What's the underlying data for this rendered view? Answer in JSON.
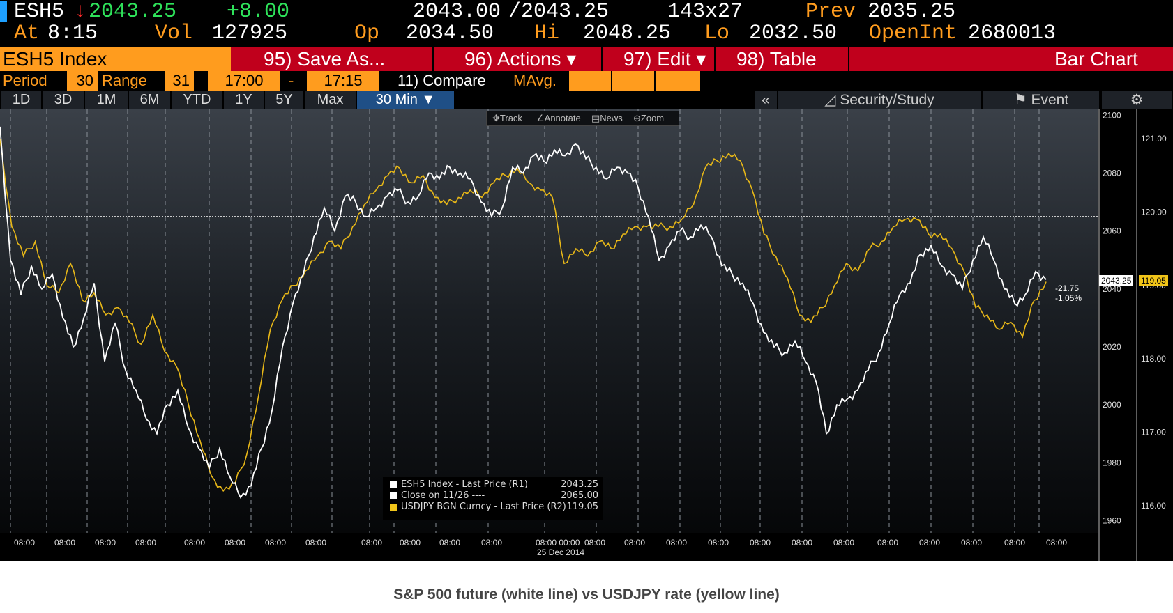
{
  "quote": {
    "ticker": "ESH5",
    "arrow": "↓",
    "last": "2043.25",
    "change": "+8.00",
    "bid_ask": "2043.00",
    "ask": "/2043.25",
    "size": "143x27",
    "prev_label": "Prev",
    "prev": "2035.25",
    "at_label": "At",
    "time": "8:15",
    "vol_label": "Vol",
    "vol": "127925",
    "op_label": "Op",
    "op": "2034.50",
    "hi_label": "Hi",
    "hi": "2048.25",
    "lo_label": "Lo",
    "lo": "2032.50",
    "oi_label": "OpenInt",
    "oi": "2680013"
  },
  "menubar": {
    "index": "ESH5 Index",
    "save": "95) Save As...",
    "actions": "96) Actions ▾",
    "edit": "97) Edit ▾",
    "table": "98) Table",
    "chart_type": "Bar Chart"
  },
  "periodbar": {
    "period_label": "Period",
    "period": "30",
    "range_label": "Range",
    "range": "31",
    "from": "17:00",
    "dash": "-",
    "to": "17:15",
    "compare": "11) Compare",
    "mavg": "MAvg."
  },
  "ranges": [
    "1D",
    "3D",
    "1M",
    "6M",
    "YTD",
    "1Y",
    "5Y",
    "Max",
    "30 Min ▼"
  ],
  "selected_range": "30 Min ▼",
  "right_toolbar": {
    "collapse": "«",
    "security": "Security/Study",
    "event": "Event",
    "settings": "⚙"
  },
  "chart_tools": {
    "track": "Track",
    "annotate": "Annotate",
    "news": "News",
    "zoom": "Zoom"
  },
  "legend": [
    {
      "name": "ESH5 Index - Last Price (R1)",
      "value": "2043.25",
      "color": "#ffffff"
    },
    {
      "name": "Close on 11/26 ----",
      "value": "2065.00",
      "color": "#ffffff"
    },
    {
      "name": "USDJPY BGN Curncy - Last Price (R2)",
      "value": "119.05",
      "color": "#f0c419"
    }
  ],
  "price_tag": {
    "value": "2043.25",
    "change": "-21.75",
    "pct": "-1.05%"
  },
  "jpy_tag": {
    "value": "119.05"
  },
  "caption": "S&P 500 future (white line) vs USDJPY rate (yellow line)",
  "chart_data": {
    "type": "line",
    "y_left_ticks": [
      "2100",
      "2080",
      "2060",
      "2040",
      "2020",
      "2000",
      "1980",
      "1960"
    ],
    "y_left_range": [
      1950,
      2102
    ],
    "y_right_ticks": [
      "121.00",
      "120.00",
      "119.00",
      "118.00",
      "117.00",
      "116.00"
    ],
    "y_right_range": [
      115.4,
      121.4
    ],
    "x_ticks": [
      "08:00",
      "08:00",
      "08:00",
      "08:00",
      "08:00",
      "08:00",
      "08:00",
      "08:00",
      "08:00",
      "08:00",
      "08:00",
      "08:00",
      "08:00",
      "08:00",
      "08:00",
      "08:00",
      "08:00",
      "08:00",
      "08:00",
      "08:00",
      "08:00",
      "08:00",
      "08:00",
      "08:00",
      "08:00",
      "08:00"
    ],
    "x_special": {
      "index": 12,
      "label": "08:00 00:00",
      "sub": "25 Dec 2014"
    },
    "reference_close": 2065.0,
    "series": [
      {
        "name": "ESH5 Index - Last Price (R1)",
        "color": "#ffffff",
        "axis": "left",
        "values": [
          2096,
          2050,
          2038,
          2048,
          2040,
          2045,
          2030,
          2020,
          2030,
          2042,
          2015,
          2028,
          2012,
          2005,
          1995,
          1990,
          2000,
          2005,
          1992,
          1985,
          1978,
          1985,
          1975,
          1968,
          1972,
          1985,
          1998,
          2020,
          2035,
          2045,
          2058,
          2068,
          2060,
          2072,
          2070,
          2065,
          2068,
          2072,
          2074,
          2070,
          2072,
          2080,
          2078,
          2082,
          2080,
          2078,
          2070,
          2065,
          2068,
          2082,
          2080,
          2086,
          2084,
          2088,
          2086,
          2090,
          2085,
          2082,
          2078,
          2082,
          2080,
          2075,
          2065,
          2050,
          2055,
          2060,
          2058,
          2062,
          2058,
          2048,
          2045,
          2042,
          2035,
          2025,
          2020,
          2018,
          2022,
          2015,
          2008,
          1990,
          2000,
          2002,
          2005,
          2012,
          2018,
          2028,
          2038,
          2042,
          2052,
          2055,
          2048,
          2045,
          2040,
          2050,
          2058,
          2050,
          2040,
          2035,
          2038,
          2046,
          2043.25
        ]
      },
      {
        "name": "USDJPY BGN Curncy - Last Price (R2)",
        "color": "#f0c419",
        "axis": "right",
        "values": [
          121.0,
          119.8,
          119.4,
          119.6,
          119.0,
          118.9,
          119.3,
          118.8,
          118.9,
          118.6,
          118.7,
          118.5,
          118.2,
          118.6,
          118.1,
          117.9,
          117.4,
          116.9,
          116.4,
          116.2,
          116.3,
          116.7,
          117.5,
          118.4,
          118.8,
          119.0,
          119.2,
          119.4,
          119.6,
          119.5,
          119.8,
          120.1,
          120.3,
          120.5,
          120.6,
          120.4,
          120.5,
          120.2,
          120.1,
          120.2,
          120.3,
          120.2,
          120.4,
          120.5,
          120.6,
          120.4,
          120.3,
          120.2,
          119.3,
          119.5,
          119.4,
          119.6,
          119.5,
          119.7,
          119.8,
          119.8,
          119.8,
          119.8,
          119.9,
          120.1,
          120.6,
          120.7,
          120.8,
          120.7,
          120.3,
          119.7,
          119.4,
          119.1,
          118.6,
          118.5,
          118.7,
          119.0,
          119.3,
          119.2,
          119.5,
          119.6,
          119.8,
          119.9,
          119.9,
          119.7,
          119.7,
          119.5,
          119.2,
          118.7,
          118.6,
          118.4,
          118.5,
          118.3,
          118.8,
          119.05
        ]
      }
    ]
  }
}
